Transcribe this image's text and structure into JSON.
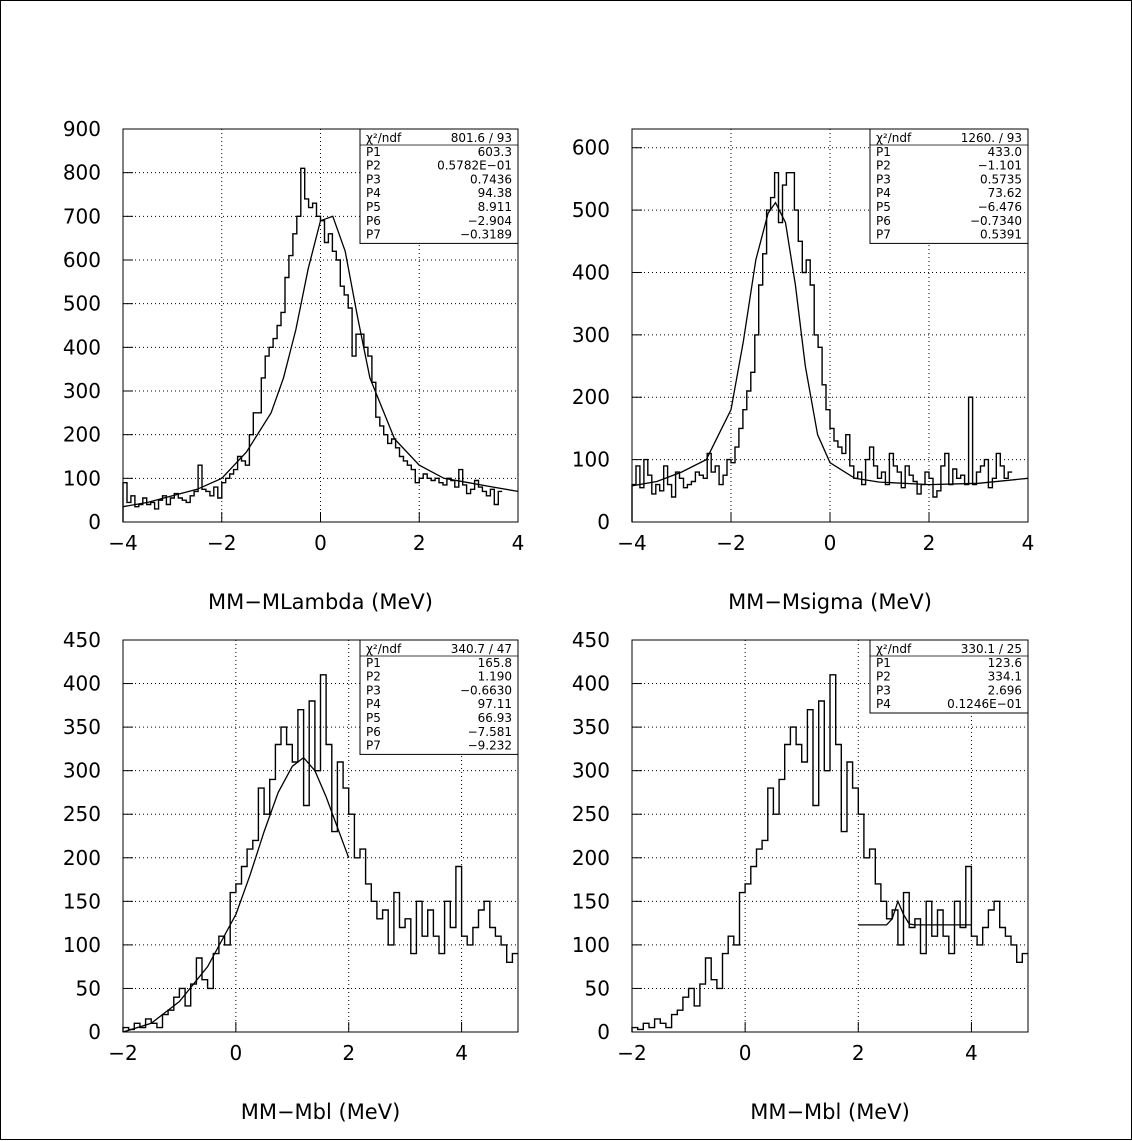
{
  "colors": {
    "ink": "#000000",
    "background": "#ffffff",
    "grid": "#000000"
  },
  "chart_data": [
    {
      "type": "histogram",
      "xlabel": "MM−MLambda (MeV)",
      "xlim": [
        -4,
        4
      ],
      "ylim": [
        0,
        900
      ],
      "xticks": [
        -4,
        -2,
        0,
        2,
        4
      ],
      "xtick_labels": [
        "−4",
        "−2",
        "0",
        "2",
        "4"
      ],
      "yticks": [
        0,
        100,
        200,
        300,
        400,
        500,
        600,
        700,
        800,
        900
      ],
      "ytick_labels": [
        "0",
        "100",
        "200",
        "300",
        "400",
        "500",
        "600",
        "700",
        "800",
        "900"
      ],
      "grid": true,
      "stats_box": {
        "placement": "top-right",
        "rows": [
          {
            "label": "χ²/ndf",
            "value": "801.6   /   93"
          },
          {
            "label": "P1",
            "value": "603.3"
          },
          {
            "label": "P2",
            "value": "0.5782E−01"
          },
          {
            "label": "P3",
            "value": "0.7436"
          },
          {
            "label": "P4",
            "value": "94.38"
          },
          {
            "label": "P5",
            "value": "8.911"
          },
          {
            "label": "P6",
            "value": "−2.904"
          },
          {
            "label": "P7",
            "value": "−0.3189"
          }
        ]
      },
      "hist": {
        "x_start": -4,
        "bin_width": 0.08,
        "values": [
          90,
          45,
          60,
          35,
          40,
          55,
          40,
          45,
          30,
          50,
          60,
          40,
          55,
          65,
          55,
          50,
          45,
          60,
          70,
          130,
          75,
          70,
          60,
          80,
          55,
          90,
          100,
          110,
          120,
          150,
          140,
          130,
          200,
          250,
          250,
          330,
          380,
          400,
          420,
          450,
          480,
          560,
          610,
          660,
          700,
          810,
          740,
          720,
          730,
          700,
          690,
          640,
          660,
          620,
          600,
          540,
          520,
          490,
          380,
          430,
          430,
          400,
          380,
          320,
          240,
          220,
          200,
          180,
          190,
          170,
          150,
          140,
          130,
          120,
          90,
          100,
          110,
          100,
          95,
          100,
          90,
          85,
          100,
          95,
          80,
          120,
          85,
          65,
          75,
          95,
          80,
          70,
          60,
          75,
          40,
          70
        ]
      },
      "fit": {
        "x": [
          -4,
          -3.5,
          -3,
          -2.5,
          -2,
          -1.5,
          -1,
          -0.75,
          -0.5,
          -0.25,
          0,
          0.25,
          0.5,
          0.75,
          1,
          1.5,
          2,
          2.5,
          3,
          3.5,
          4
        ],
        "y": [
          35,
          45,
          60,
          75,
          100,
          160,
          250,
          330,
          440,
          580,
          690,
          700,
          620,
          470,
          330,
          190,
          130,
          100,
          90,
          80,
          70
        ]
      }
    },
    {
      "type": "histogram",
      "xlabel": "MM−Msigma (MeV)",
      "xlim": [
        -4,
        4
      ],
      "ylim": [
        0,
        630
      ],
      "xticks": [
        -4,
        -2,
        0,
        2,
        4
      ],
      "xtick_labels": [
        "−4",
        "−2",
        "0",
        "2",
        "4"
      ],
      "yticks": [
        0,
        100,
        200,
        300,
        400,
        500,
        600
      ],
      "ytick_labels": [
        "0",
        "100",
        "200",
        "300",
        "400",
        "500",
        "600"
      ],
      "grid": true,
      "stats_box": {
        "placement": "top-right",
        "rows": [
          {
            "label": "χ²/ndf",
            "value": "1260.   /   93"
          },
          {
            "label": "P1",
            "value": "433.0"
          },
          {
            "label": "P2",
            "value": "−1.101"
          },
          {
            "label": "P3",
            "value": "0.5735"
          },
          {
            "label": "P4",
            "value": "73.62"
          },
          {
            "label": "P5",
            "value": "−6.476"
          },
          {
            "label": "P6",
            "value": "−0.7340"
          },
          {
            "label": "P7",
            "value": "0.5391"
          }
        ]
      },
      "hist": {
        "x_start": -4,
        "bin_width": 0.08,
        "values": [
          60,
          90,
          55,
          100,
          75,
          45,
          60,
          50,
          90,
          60,
          40,
          80,
          70,
          55,
          60,
          65,
          80,
          75,
          70,
          110,
          80,
          90,
          60,
          75,
          100,
          95,
          120,
          150,
          180,
          210,
          240,
          300,
          380,
          430,
          500,
          520,
          560,
          480,
          540,
          560,
          560,
          500,
          450,
          400,
          420,
          380,
          300,
          280,
          220,
          180,
          150,
          130,
          120,
          110,
          140,
          90,
          70,
          80,
          60,
          100,
          120,
          90,
          70,
          80,
          60,
          110,
          90,
          80,
          55,
          90,
          75,
          65,
          45,
          60,
          80,
          70,
          40,
          50,
          90,
          110,
          60,
          85,
          70,
          75,
          60,
          200,
          60,
          80,
          90,
          100,
          55,
          70,
          110,
          90,
          70,
          80
        ]
      },
      "fit": {
        "x": [
          -4,
          -3.5,
          -3,
          -2.5,
          -2,
          -1.75,
          -1.5,
          -1.25,
          -1.1,
          -0.9,
          -0.7,
          -0.5,
          -0.25,
          0,
          0.5,
          1,
          2,
          3,
          4
        ],
        "y": [
          58,
          65,
          80,
          100,
          180,
          290,
          420,
          495,
          512,
          480,
          380,
          250,
          140,
          95,
          70,
          64,
          60,
          62,
          70
        ]
      }
    },
    {
      "type": "histogram",
      "xlabel": "MM−Mbl (MeV)",
      "xlim": [
        -2,
        5
      ],
      "ylim": [
        0,
        450
      ],
      "xticks": [
        -2,
        0,
        2,
        4
      ],
      "xtick_labels": [
        "−2",
        "0",
        "2",
        "4"
      ],
      "yticks": [
        0,
        50,
        100,
        150,
        200,
        250,
        300,
        350,
        400,
        450
      ],
      "ytick_labels": [
        "0",
        "50",
        "100",
        "150",
        "200",
        "250",
        "300",
        "350",
        "400",
        "450"
      ],
      "grid": true,
      "stats_box": {
        "placement": "top-right",
        "rows": [
          {
            "label": "χ²/ndf",
            "value": "340.7   /   47"
          },
          {
            "label": "P1",
            "value": "165.8"
          },
          {
            "label": "P2",
            "value": "1.190"
          },
          {
            "label": "P3",
            "value": "−0.6630"
          },
          {
            "label": "P4",
            "value": "97.11"
          },
          {
            "label": "P5",
            "value": "66.93"
          },
          {
            "label": "P6",
            "value": "−7.581"
          },
          {
            "label": "P7",
            "value": "−9.232"
          }
        ]
      },
      "hist": {
        "x_start": -2,
        "bin_width": 0.1,
        "values": [
          5,
          3,
          10,
          5,
          15,
          10,
          5,
          20,
          25,
          40,
          50,
          30,
          55,
          85,
          60,
          50,
          90,
          110,
          100,
          160,
          170,
          190,
          210,
          220,
          280,
          250,
          290,
          330,
          350,
          330,
          310,
          370,
          260,
          380,
          300,
          410,
          330,
          230,
          310,
          280,
          250,
          200,
          210,
          170,
          150,
          130,
          140,
          100,
          160,
          120,
          130,
          90,
          150,
          110,
          140,
          110,
          90,
          150,
          120,
          190,
          110,
          100,
          120,
          140,
          150,
          120,
          110,
          100,
          80,
          90
        ]
      },
      "fit": {
        "x": [
          -2,
          -1.5,
          -1,
          -0.5,
          0,
          0.25,
          0.5,
          0.75,
          1,
          1.2,
          1.4,
          1.6,
          1.8,
          2
        ],
        "y": [
          0,
          10,
          35,
          75,
          135,
          180,
          230,
          275,
          305,
          315,
          300,
          270,
          235,
          200
        ]
      }
    },
    {
      "type": "histogram",
      "xlabel": "MM−Mbl (MeV)",
      "xlim": [
        -2,
        5
      ],
      "ylim": [
        0,
        450
      ],
      "xticks": [
        -2,
        0,
        2,
        4
      ],
      "xtick_labels": [
        "−2",
        "0",
        "2",
        "4"
      ],
      "yticks": [
        0,
        50,
        100,
        150,
        200,
        250,
        300,
        350,
        400,
        450
      ],
      "ytick_labels": [
        "0",
        "50",
        "100",
        "150",
        "200",
        "250",
        "300",
        "350",
        "400",
        "450"
      ],
      "grid": true,
      "stats_box": {
        "placement": "top-right",
        "rows": [
          {
            "label": "χ²/ndf",
            "value": "330.1   /   25"
          },
          {
            "label": "P1",
            "value": "123.6"
          },
          {
            "label": "P2",
            "value": "334.1"
          },
          {
            "label": "P3",
            "value": "2.696"
          },
          {
            "label": "P4",
            "value": "0.1246E−01"
          }
        ]
      },
      "hist": {
        "x_start": -2,
        "bin_width": 0.1,
        "values": [
          5,
          3,
          10,
          5,
          15,
          10,
          5,
          20,
          25,
          40,
          50,
          30,
          55,
          85,
          60,
          50,
          90,
          110,
          100,
          160,
          170,
          190,
          210,
          220,
          280,
          250,
          290,
          330,
          350,
          330,
          310,
          370,
          260,
          380,
          300,
          410,
          330,
          230,
          310,
          280,
          250,
          200,
          210,
          170,
          150,
          130,
          140,
          100,
          160,
          120,
          130,
          90,
          150,
          110,
          140,
          110,
          90,
          150,
          120,
          190,
          110,
          100,
          120,
          140,
          150,
          120,
          110,
          100,
          80,
          90
        ]
      },
      "fit": {
        "x": [
          2,
          2.5,
          2.6,
          2.7,
          2.8,
          2.9,
          3.0,
          4.0
        ],
        "y": [
          123,
          123,
          130,
          150,
          135,
          124,
          123,
          123
        ]
      }
    }
  ]
}
